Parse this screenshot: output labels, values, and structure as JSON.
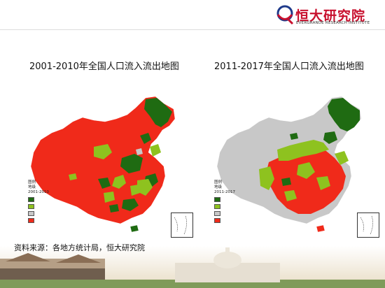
{
  "header": {
    "logo_cn": "恒大研究院",
    "logo_en": "EVERGRANDE RESEARCH INSTITUTE",
    "brand_color": "#c8102e"
  },
  "maps": [
    {
      "title": "2001-2010年全国人口流入流出地图",
      "legend": {
        "heading_lines": [
          "图例",
          "地级",
          "2001-2010"
        ]
      }
    },
    {
      "title": "2011-2017年全国人口流入流出地图",
      "legend": {
        "heading_lines": [
          "图例",
          "地级",
          "2011-2017"
        ]
      }
    }
  ],
  "palette": {
    "dark_green": "#1f6b12",
    "light_green": "#8ec21f",
    "gray": "#c8c8c8",
    "red": "#f02a1a"
  },
  "source_text": "资料来源：各地方统计局，恒大研究院"
}
